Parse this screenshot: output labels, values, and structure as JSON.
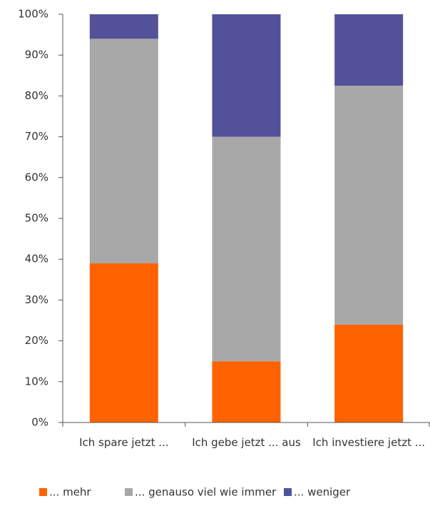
{
  "chart_data": {
    "type": "stacked_bar",
    "categories": [
      "Ich spare jetzt ...",
      "Ich gebe jetzt ... aus",
      "Ich investiere jetzt ..."
    ],
    "series": [
      {
        "name": "... mehr",
        "color": "#ff6200",
        "values": [
          39,
          15,
          24
        ]
      },
      {
        "name": "... genauso viel wie immer",
        "color": "#a8a8a8",
        "values": [
          55,
          55,
          58.5
        ]
      },
      {
        "name": "... weniger",
        "color": "#525199",
        "values": [
          6,
          30,
          17.5
        ]
      }
    ],
    "ylim": [
      0,
      100
    ],
    "yticks": [
      {
        "value": 0,
        "label": "0%"
      },
      {
        "value": 10,
        "label": "10%"
      },
      {
        "value": 20,
        "label": "20%"
      },
      {
        "value": 30,
        "label": "30%"
      },
      {
        "value": 40,
        "label": "40%"
      },
      {
        "value": 50,
        "label": "50%"
      },
      {
        "value": 60,
        "label": "60%"
      },
      {
        "value": 70,
        "label": "70%"
      },
      {
        "value": 80,
        "label": "80%"
      },
      {
        "value": 90,
        "label": "90%"
      },
      {
        "value": 100,
        "label": "100%"
      }
    ],
    "legend": "bottom"
  }
}
